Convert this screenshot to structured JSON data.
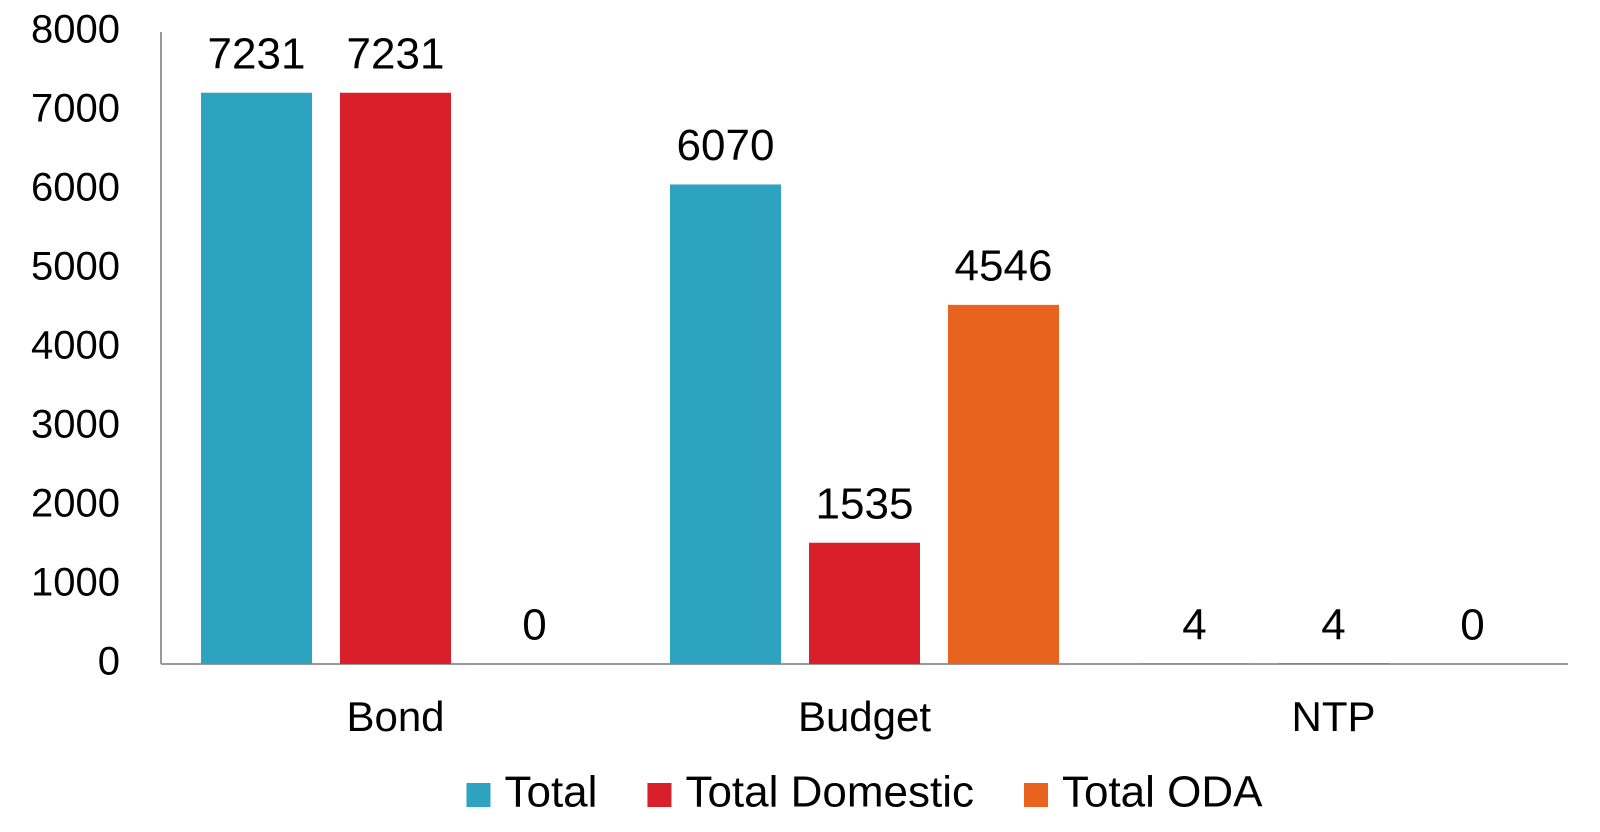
{
  "chart_data": {
    "type": "bar",
    "categories": [
      "Bond",
      "Budget",
      "NTP"
    ],
    "series": [
      {
        "name": "Total",
        "color": "#2ea3bf",
        "values": [
          7231,
          6070,
          4
        ]
      },
      {
        "name": "Total Domestic",
        "color": "#d9202a",
        "values": [
          7231,
          1535,
          4
        ]
      },
      {
        "name": "Total ODA",
        "color": "#e8641e",
        "values": [
          0,
          4546,
          0
        ]
      }
    ],
    "ylim": [
      0,
      8000
    ],
    "yticks": [
      0,
      1000,
      2000,
      3000,
      4000,
      5000,
      6000,
      7000,
      8000
    ],
    "grid": false,
    "legend": "bottom"
  }
}
